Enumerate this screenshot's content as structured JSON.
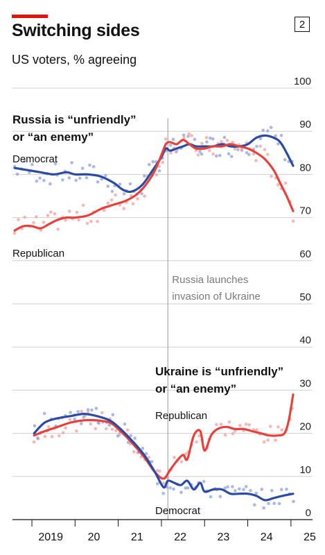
{
  "header": {
    "title": "Switching sides",
    "subtitle": "US voters, % agreeing",
    "badge": "2"
  },
  "colors": {
    "accent": "#e3120b",
    "democrat": "#2a4aa4",
    "republican": "#e8413b",
    "democrat_dots": "#8ea0d8",
    "republican_dots": "#f2a09c",
    "grid": "#cfcfcf",
    "event_line": "#a8a8a8",
    "event_text": "#7a7a7a"
  },
  "chart_data": {
    "type": "line",
    "ylim": [
      0,
      100
    ],
    "xlim": [
      2018.55,
      2025.5
    ],
    "y_ticks": [
      0,
      10,
      20,
      30,
      40,
      50,
      60,
      70,
      80,
      90,
      100
    ],
    "x_ticks": [
      {
        "value": 2019,
        "label": "2019"
      },
      {
        "value": 2020,
        "label": "20"
      },
      {
        "value": 2021,
        "label": "21"
      },
      {
        "value": 2022,
        "label": "22"
      },
      {
        "value": 2023,
        "label": "23"
      },
      {
        "value": 2024,
        "label": "24"
      },
      {
        "value": 2025,
        "label": "25"
      }
    ],
    "grid": true,
    "annotations": {
      "event": {
        "x": 2022.15,
        "lines": [
          "Russia launches",
          "invasion of Ukraine"
        ]
      },
      "russia_heading": [
        "Russia is “unfriendly”",
        "or “an enemy”"
      ],
      "ukraine_heading": [
        "Ukraine is “unfriendly”",
        "or “an enemy”"
      ],
      "russia_democrat": "Democrat",
      "russia_republican": "Republican",
      "ukraine_republican": "Republican",
      "ukraine_democrat": "Democrat"
    },
    "panels": [
      {
        "id": "russia",
        "series": [
          {
            "party": "democrat",
            "x": [
              2018.6,
              2018.9,
              2019.2,
              2019.5,
              2019.8,
              2020.0,
              2020.3,
              2020.6,
              2020.9,
              2021.1,
              2021.3,
              2021.55,
              2021.8,
              2022.0,
              2022.1,
              2022.2,
              2022.35,
              2022.5,
              2022.65,
              2022.8,
              2023.0,
              2023.2,
              2023.4,
              2023.6,
              2023.8,
              2024.0,
              2024.2,
              2024.4,
              2024.6,
              2024.75,
              2024.9,
              2025.05
            ],
            "y": [
              81.5,
              81,
              80.5,
              80,
              80.5,
              80,
              80,
              79.5,
              78,
              76.5,
              76,
              77.5,
              81,
              84,
              86,
              85.5,
              86,
              86.5,
              87,
              86.5,
              86.5,
              86.5,
              87,
              86.5,
              86.5,
              87,
              88.5,
              89,
              88.5,
              87.5,
              85,
              82
            ]
          },
          {
            "party": "republican",
            "x": [
              2018.6,
              2018.8,
              2019.0,
              2019.2,
              2019.4,
              2019.6,
              2019.8,
              2020.0,
              2020.3,
              2020.6,
              2020.9,
              2021.2,
              2021.5,
              2021.8,
              2022.0,
              2022.1,
              2022.2,
              2022.35,
              2022.5,
              2022.65,
              2022.8,
              2023.0,
              2023.2,
              2023.4,
              2023.6,
              2023.8,
              2024.0,
              2024.2,
              2024.4,
              2024.6,
              2024.75,
              2024.9,
              2025.05
            ],
            "y": [
              67,
              68,
              68,
              67.5,
              68.5,
              69.5,
              70,
              70,
              70.5,
              72,
              73,
              74,
              76,
              80,
              84.5,
              87,
              87.5,
              87,
              88,
              87,
              86,
              86,
              86.5,
              86.5,
              87,
              86.5,
              86,
              85,
              83.5,
              81,
              78,
              75,
              71.5
            ]
          }
        ]
      },
      {
        "id": "ukraine",
        "series": [
          {
            "party": "republican",
            "x": [
              2019.05,
              2019.3,
              2019.6,
              2019.9,
              2020.2,
              2020.5,
              2020.8,
              2021.0,
              2021.3,
              2021.6,
              2021.85,
              2022.05,
              2022.2,
              2022.35,
              2022.5,
              2022.6,
              2022.75,
              2022.9,
              2023.0,
              2023.15,
              2023.3,
              2023.5,
              2023.7,
              2023.9,
              2024.1,
              2024.3,
              2024.5,
              2024.7,
              2024.85,
              2024.95,
              2025.05
            ],
            "y": [
              19.5,
              20.5,
              21.5,
              22.5,
              23,
              23,
              22.5,
              21,
              18,
              14.5,
              11,
              9.5,
              11.5,
              13.5,
              15,
              14,
              19.5,
              20.5,
              16,
              19.5,
              21,
              21.5,
              21,
              21,
              20.5,
              20,
              19.5,
              19.5,
              20,
              23,
              29
            ]
          },
          {
            "party": "democrat",
            "x": [
              2019.05,
              2019.3,
              2019.6,
              2019.9,
              2020.2,
              2020.5,
              2020.8,
              2021.0,
              2021.3,
              2021.6,
              2021.85,
              2022.05,
              2022.15,
              2022.3,
              2022.45,
              2022.6,
              2022.75,
              2022.9,
              2023.0,
              2023.2,
              2023.4,
              2023.6,
              2023.8,
              2024.0,
              2024.2,
              2024.4,
              2024.6,
              2024.8,
              2025.05
            ],
            "y": [
              20,
              22.5,
              23.5,
              24,
              24.5,
              24,
              23,
              21.5,
              18.5,
              15,
              11,
              7.5,
              9,
              8.5,
              8,
              9,
              7,
              8.5,
              6.5,
              7,
              7,
              6,
              6,
              6,
              5.5,
              4.5,
              5,
              5.5,
              6
            ]
          }
        ]
      }
    ]
  }
}
